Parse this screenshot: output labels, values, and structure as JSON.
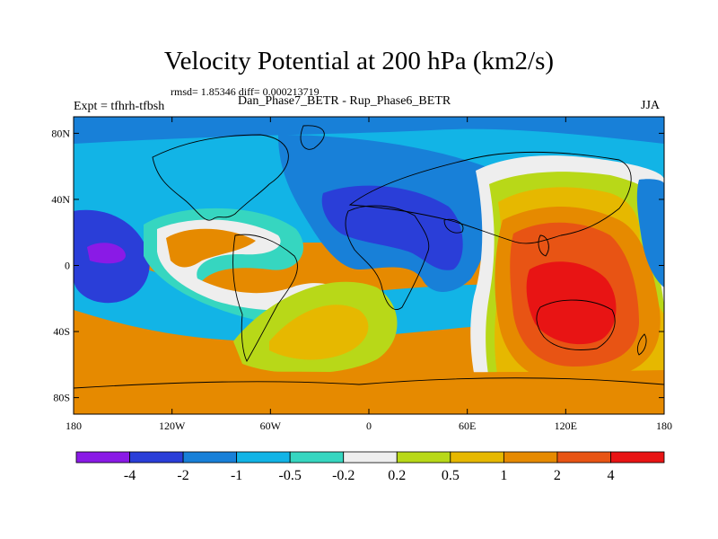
{
  "title": "Velocity Potential at 200 hPa (km2/s)",
  "stats": "rmsd= 1.85346  diff= 0.000213719",
  "left_label": "Expt = tfhrh-tfbsh",
  "center_label": "Dan_Phase7_BETR - Rup_Phase6_BETR",
  "right_label": "JJA",
  "x_ticks": [
    "180",
    "120W",
    "60W",
    "0",
    "60E",
    "120E",
    "180"
  ],
  "y_ticks": [
    "80N",
    "40N",
    "0",
    "40S",
    "80S"
  ],
  "colorbar": {
    "colors": [
      "#8a1ae6",
      "#2a3ed8",
      "#1880d8",
      "#12b4e6",
      "#36d6c0",
      "#eeeeee",
      "#b8d818",
      "#e6b800",
      "#e68a00",
      "#e85414",
      "#e81414"
    ],
    "labels": [
      "-4",
      "-2",
      "-1",
      "-0.5",
      "-0.2",
      "0.2",
      "0.5",
      "1",
      "2",
      "4"
    ]
  }
}
